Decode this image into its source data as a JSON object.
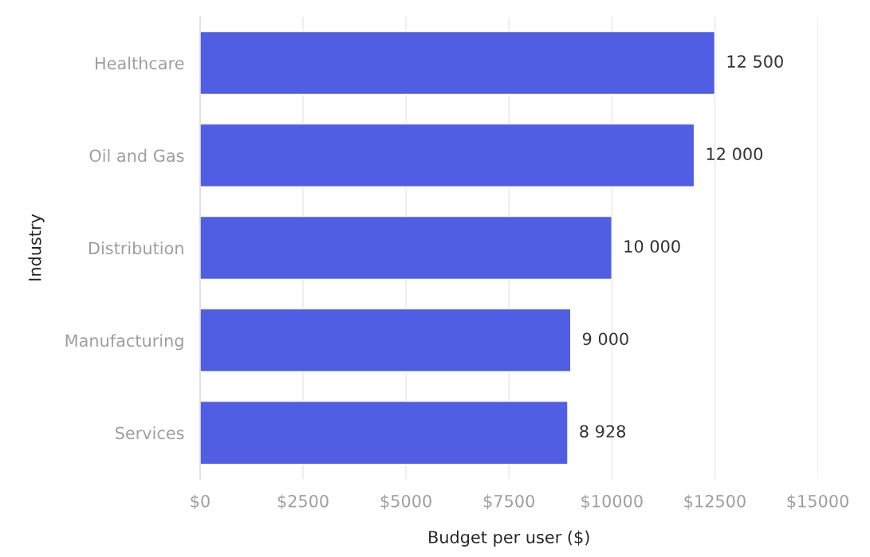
{
  "chart_data": {
    "type": "bar",
    "orientation": "horizontal",
    "xlabel": "Budget per user ($)",
    "ylabel": "Industry",
    "categories": [
      "Healthcare",
      "Oil and Gas",
      "Distribution",
      "Manufacturing",
      "Services"
    ],
    "values": [
      12500,
      12000,
      10000,
      9000,
      8928
    ],
    "value_labels": [
      "12 500",
      "12 000",
      "10 000",
      "9 000",
      "8 928"
    ],
    "color": "#505ee4",
    "xlim": [
      0,
      15000
    ],
    "xticks": [
      {
        "value": 0,
        "label": "$0"
      },
      {
        "value": 2500,
        "label": "$2500"
      },
      {
        "value": 5000,
        "label": "$5000"
      },
      {
        "value": 7500,
        "label": "$7500"
      },
      {
        "value": 10000,
        "label": "$10000"
      },
      {
        "value": 12500,
        "label": "$12500"
      },
      {
        "value": 15000,
        "label": "$15000"
      }
    ],
    "grid": "x",
    "legend": false
  }
}
